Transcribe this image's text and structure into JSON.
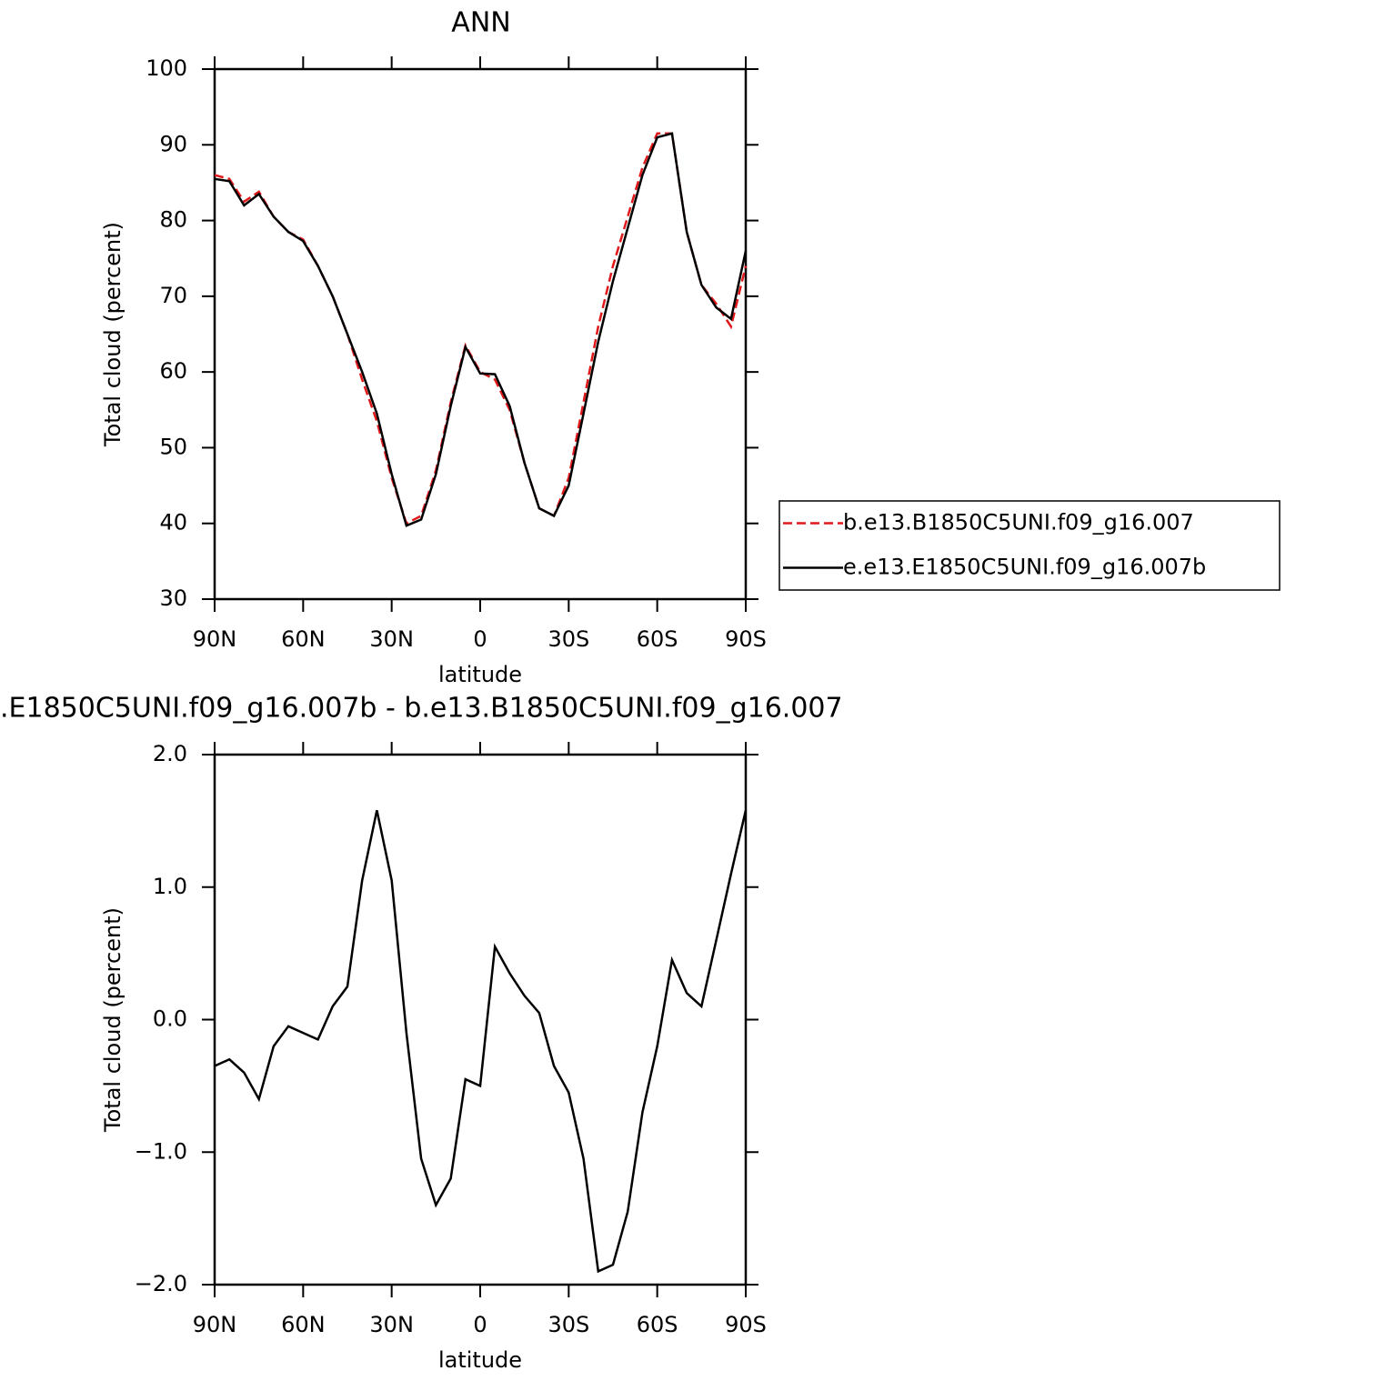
{
  "chart_data": [
    {
      "type": "line",
      "title": "ANN",
      "xlabel": "latitude",
      "ylabel": "Total cloud (percent)",
      "x": [
        90,
        85,
        80,
        75,
        70,
        65,
        60,
        55,
        50,
        45,
        40,
        35,
        30,
        25,
        20,
        15,
        10,
        5,
        0,
        -5,
        -10,
        -15,
        -20,
        -25,
        -30,
        -35,
        -40,
        -45,
        -50,
        -55,
        -60,
        -65,
        -70,
        -75,
        -80,
        -85,
        -90
      ],
      "xlim": [
        90,
        -90
      ],
      "xticks": [
        {
          "value": 90,
          "label": "90N"
        },
        {
          "value": 60,
          "label": "60N"
        },
        {
          "value": 30,
          "label": "30N"
        },
        0,
        {
          "value": -30,
          "label": "30S"
        },
        {
          "value": -60,
          "label": "60S"
        },
        {
          "value": -90,
          "label": "90S"
        }
      ],
      "ylim": [
        30,
        100
      ],
      "yticks": [
        30,
        40,
        50,
        60,
        70,
        80,
        90,
        100
      ],
      "legend": "right",
      "series": [
        {
          "name": "b.e13.B1850C5UNI.f09_g16.007",
          "color": "#e0191b",
          "line_style": "dashed",
          "values": [
            86,
            85.5,
            82.5,
            83.8,
            80.5,
            78.5,
            77.5,
            74,
            70,
            65,
            59,
            53.5,
            46,
            40,
            41,
            47,
            56,
            63.5,
            60,
            59,
            55,
            48,
            42,
            41,
            46,
            56,
            66,
            74,
            80.5,
            87,
            91.5,
            91.5,
            78.5,
            71.5,
            69,
            66,
            74
          ]
        },
        {
          "name": "e.e13.E1850C5UNI.f09_g16.007b",
          "color": "#000000",
          "line_style": "solid",
          "values": [
            85.5,
            85.2,
            82,
            83.5,
            80.5,
            78.5,
            77.3,
            74,
            70,
            65,
            60,
            54.5,
            46.5,
            39.7,
            40.5,
            46.5,
            55.5,
            63.3,
            59.8,
            59.7,
            55.5,
            48,
            42,
            41,
            45,
            54.5,
            64,
            72,
            79,
            86,
            91,
            91.5,
            78.5,
            71.5,
            68.5,
            67,
            76
          ]
        }
      ]
    },
    {
      "type": "line",
      "title": ".E1850C5UNI.f09_g16.007b - b.e13.B1850C5UNI.f09_g16.007",
      "xlabel": "latitude",
      "ylabel": "Total cloud (percent)",
      "x": [
        90,
        85,
        80,
        75,
        70,
        65,
        60,
        55,
        50,
        45,
        40,
        35,
        30,
        25,
        20,
        15,
        10,
        5,
        0,
        -5,
        -10,
        -15,
        -20,
        -25,
        -30,
        -35,
        -40,
        -45,
        -50,
        -55,
        -60,
        -65,
        -70,
        -75,
        -80,
        -85,
        -90
      ],
      "xlim": [
        90,
        -90
      ],
      "xticks": [
        {
          "value": 90,
          "label": "90N"
        },
        {
          "value": 60,
          "label": "60N"
        },
        {
          "value": 30,
          "label": "30N"
        },
        0,
        {
          "value": -30,
          "label": "30S"
        },
        {
          "value": -60,
          "label": "60S"
        },
        {
          "value": -90,
          "label": "90S"
        }
      ],
      "ylim": [
        -2,
        2
      ],
      "yticks": [
        {
          "value": -2,
          "label": "−2.0"
        },
        {
          "value": -1,
          "label": "−1.0"
        },
        {
          "value": 0,
          "label": "0.0"
        },
        {
          "value": 1,
          "label": "1.0"
        },
        {
          "value": 2,
          "label": "2.0"
        }
      ],
      "series": [
        {
          "color": "#000000",
          "line_style": "solid",
          "values": [
            -0.35,
            -0.3,
            -0.4,
            -0.6,
            -0.2,
            -0.05,
            -0.1,
            -0.15,
            0.1,
            0.25,
            1.05,
            1.58,
            1.05,
            -0.1,
            -1.05,
            -1.4,
            -1.2,
            -0.45,
            -0.5,
            0.55,
            0.35,
            0.18,
            0.05,
            -0.35,
            -0.55,
            -1.05,
            -1.9,
            -1.85,
            -1.45,
            -0.7,
            -0.2,
            0.45,
            0.2,
            0.1,
            0.6,
            1.1,
            1.58
          ]
        }
      ]
    }
  ]
}
